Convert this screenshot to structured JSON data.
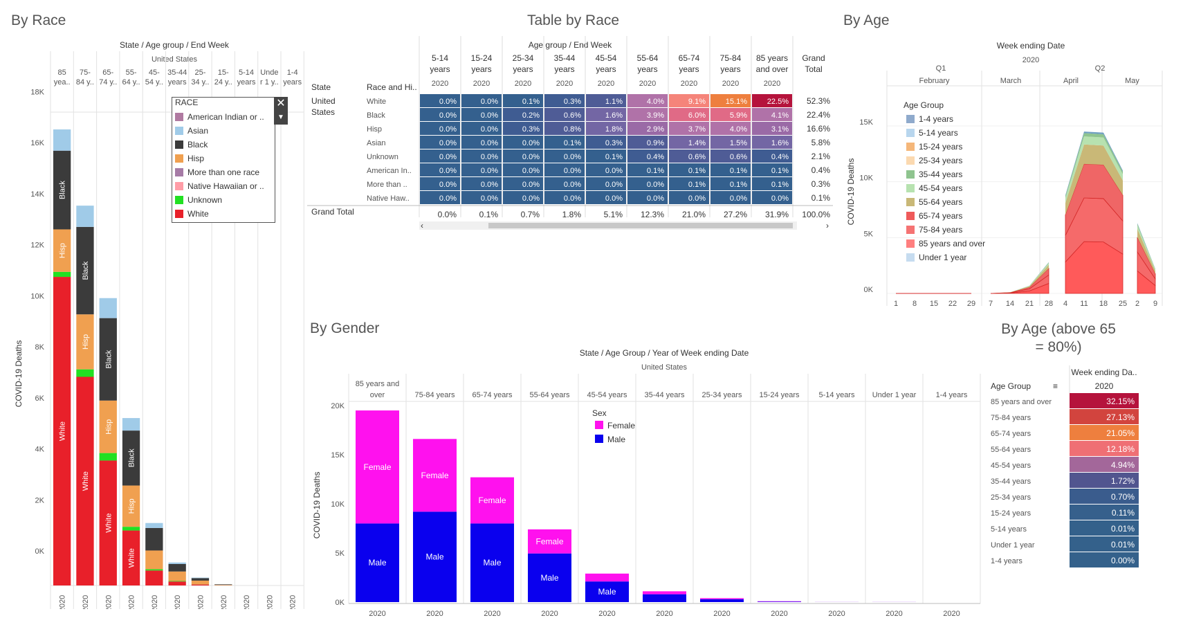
{
  "titles": {
    "by_race": "By Race",
    "table_by_race": "Table by Race",
    "by_age": "By Age",
    "by_gender": "By Gender",
    "by_age_above": "By Age (above 65 = 80%)"
  },
  "race_chart": {
    "header": "State / Age group / End Week",
    "state": "United States",
    "ylabel": "COVID-19 Deaths",
    "year": "2020",
    "column_labels": [
      "85 yea..",
      "75-84 y..",
      "65-74 y..",
      "55-64 ys..",
      "45-54 y..",
      "35-44 years",
      "25-34 y..",
      "15-24 y..",
      "5-14 years",
      "Under 1 y..",
      "1-4 years"
    ],
    "column_labels_top": [
      "85",
      "75-",
      "65-",
      "55-",
      "45-",
      "35-44",
      "25-",
      "15-",
      "5-14",
      "Unde",
      "1-4"
    ],
    "column_labels_bottom": [
      "yea..",
      "84 y..",
      "74 y..",
      "64 y..",
      "54 y..",
      "years",
      "34 y..",
      "24 y..",
      "years",
      "r 1 y..",
      "years"
    ],
    "y_ticks": [
      "0K",
      "2K",
      "4K",
      "6K",
      "8K",
      "10K",
      "12K",
      "14K",
      "16K",
      "18K"
    ]
  },
  "race_legend": {
    "title": "RACE",
    "items": [
      {
        "label": "American Indian or ..",
        "color": "#b07aa1"
      },
      {
        "label": "Asian",
        "color": "#a0cbe8"
      },
      {
        "label": "Black",
        "color": "#3b3b3b"
      },
      {
        "label": "Hisp",
        "color": "#f0a050"
      },
      {
        "label": "More than one race",
        "color": "#a67ba6"
      },
      {
        "label": "Native Hawaiian or ..",
        "color": "#ff9da7"
      },
      {
        "label": "Unknown",
        "color": "#22e022"
      },
      {
        "label": "White",
        "color": "#e8202a"
      }
    ]
  },
  "race_table": {
    "header": "Age group / End Week",
    "col_state": "State",
    "col_race": "Race and Hi..",
    "state_value": "United States",
    "grand_total_label": "Grand Total",
    "columns": [
      "5-14 years",
      "15-24 years",
      "25-34 years",
      "35-44 years",
      "45-54 years",
      "55-64 years",
      "65-74 years",
      "75-84 years",
      "85 years and over",
      "Grand Total"
    ],
    "year": "2020",
    "rows": [
      {
        "race": "White",
        "values": [
          "0.0%",
          "0.0%",
          "0.1%",
          "0.3%",
          "1.1%",
          "4.0%",
          "9.1%",
          "15.1%",
          "22.5%",
          "52.3%"
        ]
      },
      {
        "race": "Black",
        "values": [
          "0.0%",
          "0.0%",
          "0.2%",
          "0.6%",
          "1.6%",
          "3.9%",
          "6.0%",
          "5.9%",
          "4.1%",
          "22.4%"
        ]
      },
      {
        "race": "Hisp",
        "values": [
          "0.0%",
          "0.0%",
          "0.3%",
          "0.8%",
          "1.8%",
          "2.9%",
          "3.7%",
          "4.0%",
          "3.1%",
          "16.6%"
        ]
      },
      {
        "race": "Asian",
        "values": [
          "0.0%",
          "0.0%",
          "0.0%",
          "0.1%",
          "0.3%",
          "0.9%",
          "1.4%",
          "1.5%",
          "1.6%",
          "5.8%"
        ]
      },
      {
        "race": "Unknown",
        "values": [
          "0.0%",
          "0.0%",
          "0.0%",
          "0.0%",
          "0.1%",
          "0.4%",
          "0.6%",
          "0.6%",
          "0.4%",
          "2.1%"
        ]
      },
      {
        "race": "American In..",
        "values": [
          "0.0%",
          "0.0%",
          "0.0%",
          "0.0%",
          "0.0%",
          "0.1%",
          "0.1%",
          "0.1%",
          "0.1%",
          "0.4%"
        ]
      },
      {
        "race": "More than ..",
        "values": [
          "0.0%",
          "0.0%",
          "0.0%",
          "0.0%",
          "0.0%",
          "0.0%",
          "0.1%",
          "0.1%",
          "0.1%",
          "0.3%"
        ]
      },
      {
        "race": "Native Haw..",
        "values": [
          "0.0%",
          "0.0%",
          "0.0%",
          "0.0%",
          "0.0%",
          "0.0%",
          "0.0%",
          "0.0%",
          "0.0%",
          "0.1%"
        ]
      }
    ],
    "grand_total": [
      "0.0%",
      "0.1%",
      "0.7%",
      "1.8%",
      "5.1%",
      "12.3%",
      "21.0%",
      "27.2%",
      "31.9%",
      "100.0%"
    ]
  },
  "age_chart": {
    "header": "Week ending Date",
    "year": "2020",
    "quarters": [
      "Q1",
      "Q2"
    ],
    "months": [
      "February",
      "March",
      "April",
      "May"
    ],
    "ylabel": "COVID-19 Deaths",
    "y_ticks": [
      "0K",
      "5K",
      "10K",
      "15K"
    ],
    "day_ticks": [
      [
        "1",
        "8",
        "15",
        "22",
        "29"
      ],
      [
        "7",
        "14",
        "21",
        "28"
      ],
      [
        "4",
        "11",
        "18",
        "25"
      ],
      [
        "2",
        "9"
      ]
    ]
  },
  "age_legend": {
    "title": "Age Group",
    "items": [
      {
        "label": "1-4 years",
        "color": "#8faacc"
      },
      {
        "label": "5-14 years",
        "color": "#b8d6ee"
      },
      {
        "label": "15-24 years",
        "color": "#f5b77a"
      },
      {
        "label": "25-34 years",
        "color": "#fbd9b0"
      },
      {
        "label": "35-44 years",
        "color": "#8fc48f"
      },
      {
        "label": "45-54 years",
        "color": "#b7e2b0"
      },
      {
        "label": "55-64 years",
        "color": "#c9b877"
      },
      {
        "label": "65-74 years",
        "color": "#ef5a5a"
      },
      {
        "label": "75-84 years",
        "color": "#f57373"
      },
      {
        "label": "85 years and over",
        "color": "#ff7f7f"
      },
      {
        "label": "Under 1 year",
        "color": "#c6dcf0"
      }
    ]
  },
  "gender_chart": {
    "header": "State / Age Group / Year of Week ending Date",
    "state": "United States",
    "ylabel": "COVID-19 Deaths",
    "legend_title": "Sex",
    "legend": [
      {
        "label": "Female",
        "color": "#ff11ee"
      },
      {
        "label": "Male",
        "color": "#0a00ee"
      }
    ],
    "female_label": "Female",
    "male_label": "Male",
    "year": "2020",
    "y_ticks": [
      "0K",
      "5K",
      "10K",
      "15K",
      "20K"
    ],
    "columns": [
      "85 years and over",
      "75-84 years",
      "65-74 years",
      "55-64 years",
      "45-54 years",
      "35-44 years",
      "25-34 years",
      "15-24 years",
      "5-14 years",
      "Under 1 year",
      "1-4 years"
    ]
  },
  "age_table": {
    "header": "Week ending Da..",
    "col_label": "Age Group",
    "year": "2020",
    "rows": [
      {
        "label": "85 years and over",
        "value": "32.15%",
        "color": "#b5133c"
      },
      {
        "label": "75-84 years",
        "value": "27.13%",
        "color": "#d2443e"
      },
      {
        "label": "65-74 years",
        "value": "21.05%",
        "color": "#ee7f3e"
      },
      {
        "label": "55-64 years",
        "value": "12.18%",
        "color": "#ef6f74"
      },
      {
        "label": "45-54 years",
        "value": "4.94%",
        "color": "#a3679a"
      },
      {
        "label": "35-44 years",
        "value": "1.72%",
        "color": "#51558f"
      },
      {
        "label": "25-34 years",
        "value": "0.70%",
        "color": "#3a5c8d"
      },
      {
        "label": "15-24 years",
        "value": "0.11%",
        "color": "#36608c"
      },
      {
        "label": "5-14 years",
        "value": "0.01%",
        "color": "#34618b"
      },
      {
        "label": "Under 1 year",
        "value": "0.01%",
        "color": "#34618b"
      },
      {
        "label": "1-4 years",
        "value": "0.00%",
        "color": "#34618b"
      }
    ]
  },
  "chart_data": [
    {
      "type": "bar",
      "stacked": true,
      "categories": [
        "85 years and over",
        "75-84 years",
        "65-74 years",
        "55-64 years",
        "45-54 years",
        "35-44 years",
        "25-34 years",
        "15-24 years",
        "5-14 years",
        "Under 1 year",
        "1-4 years"
      ],
      "series": [
        {
          "name": "White",
          "values": [
            12350,
            8350,
            5000,
            2200,
            600,
            160,
            40,
            5,
            0,
            0,
            0
          ]
        },
        {
          "name": "Unknown",
          "values": [
            200,
            300,
            300,
            150,
            50,
            20,
            5,
            0,
            0,
            0,
            0
          ]
        },
        {
          "name": "Hisp",
          "values": [
            1700,
            2200,
            2100,
            1650,
            750,
            380,
            150,
            20,
            0,
            0,
            0
          ]
        },
        {
          "name": "Black",
          "values": [
            3150,
            3500,
            3300,
            2200,
            900,
            300,
            100,
            20,
            0,
            0,
            0
          ]
        },
        {
          "name": "Asian",
          "values": [
            850,
            850,
            800,
            500,
            200,
            60,
            20,
            5,
            0,
            0,
            0
          ]
        }
      ],
      "ylim": [
        0,
        18500
      ]
    },
    {
      "type": "area",
      "stacked": true,
      "x": [
        "2020-02-01",
        "2020-02-29",
        "2020-03-07",
        "2020-03-14",
        "2020-03-21",
        "2020-03-28",
        "2020-04-04",
        "2020-04-11",
        "2020-04-18",
        "2020-04-25",
        "2020-05-02",
        "2020-05-09"
      ],
      "total": [
        0,
        0,
        0,
        100,
        700,
        2800,
        8800,
        14500,
        14400,
        11000,
        6300,
        2200
      ],
      "ylim": [
        0,
        16000
      ]
    },
    {
      "type": "bar",
      "stacked": true,
      "categories": [
        "85 years and over",
        "75-84 years",
        "65-74 years",
        "55-64 years",
        "45-54 years",
        "35-44 years",
        "25-34 years",
        "15-24 years",
        "5-14 years",
        "Under 1 year",
        "1-4 years"
      ],
      "series": [
        {
          "name": "Male",
          "values": [
            8000,
            9200,
            8000,
            4950,
            2100,
            800,
            300,
            50,
            5,
            5,
            0
          ]
        },
        {
          "name": "Female",
          "values": [
            11500,
            7400,
            4700,
            2450,
            800,
            300,
            100,
            40,
            5,
            5,
            0
          ]
        }
      ],
      "ylim": [
        0,
        20500
      ]
    }
  ]
}
